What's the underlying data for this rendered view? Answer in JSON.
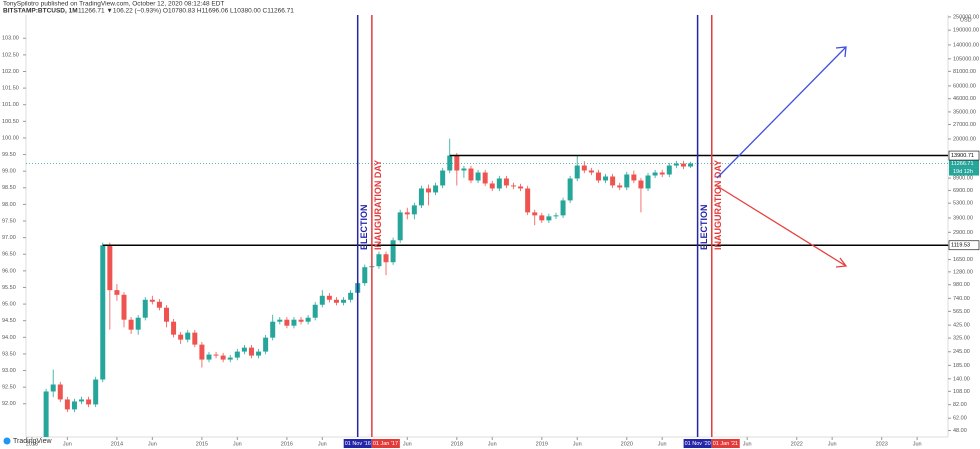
{
  "header": {
    "publisher": "TonySpilotro published on TradingView.com, October 12, 2020 08:12:48 EDT",
    "symbol": "BITSTAMP:BTCUSD, 1M",
    "quote": "11266.71 ▼106.22 (−0.93%) O10780.83 H11696.06 L10380.00 C11266.71"
  },
  "footer": {
    "brand": "TradingView"
  },
  "chart_data": {
    "type": "candlestick",
    "up_color": "#26a69a",
    "down_color": "#ef5350",
    "x": [
      "2013-03",
      "2013-04",
      "2013-05",
      "2013-06",
      "2013-07",
      "2013-08",
      "2013-09",
      "2013-10",
      "2013-11",
      "2013-12",
      "2014-01",
      "2014-02",
      "2014-03",
      "2014-04",
      "2014-05",
      "2014-06",
      "2014-07",
      "2014-08",
      "2014-09",
      "2014-10",
      "2014-11",
      "2014-12",
      "2015-01",
      "2015-02",
      "2015-03",
      "2015-04",
      "2015-05",
      "2015-06",
      "2015-07",
      "2015-08",
      "2015-09",
      "2015-10",
      "2015-11",
      "2015-12",
      "2016-01",
      "2016-02",
      "2016-03",
      "2016-04",
      "2016-05",
      "2016-06",
      "2016-07",
      "2016-08",
      "2016-09",
      "2016-10",
      "2016-11",
      "2016-12",
      "2017-01",
      "2017-02",
      "2017-03",
      "2017-04",
      "2017-05",
      "2017-06",
      "2017-07",
      "2017-08",
      "2017-09",
      "2017-10",
      "2017-11",
      "2017-12",
      "2018-01",
      "2018-02",
      "2018-03",
      "2018-04",
      "2018-05",
      "2018-06",
      "2018-07",
      "2018-08",
      "2018-09",
      "2018-10",
      "2018-11",
      "2018-12",
      "2019-01",
      "2019-02",
      "2019-03",
      "2019-04",
      "2019-05",
      "2019-06",
      "2019-07",
      "2019-08",
      "2019-09",
      "2019-10",
      "2019-11",
      "2019-12",
      "2020-01",
      "2020-02",
      "2020-03",
      "2020-04",
      "2020-05",
      "2020-06",
      "2020-07",
      "2020-08",
      "2020-09",
      "2020-10"
    ],
    "ohlc": [
      [
        90.78,
        92.45,
        90.7,
        92.37
      ],
      [
        92.37,
        93.03,
        92.2,
        92.58
      ],
      [
        92.58,
        92.66,
        92.05,
        92.13
      ],
      [
        92.13,
        92.21,
        91.75,
        91.83
      ],
      [
        91.83,
        92.15,
        91.75,
        92.07
      ],
      [
        92.07,
        92.21,
        91.99,
        92.13
      ],
      [
        92.13,
        92.21,
        91.9,
        91.98
      ],
      [
        91.98,
        92.81,
        91.9,
        92.73
      ],
      [
        92.73,
        96.85,
        92.65,
        96.77
      ],
      [
        96.77,
        96.85,
        94.23,
        95.42
      ],
      [
        95.42,
        95.6,
        95.1,
        95.28
      ],
      [
        95.28,
        95.36,
        94.3,
        94.53
      ],
      [
        94.53,
        94.61,
        94.1,
        94.23
      ],
      [
        94.23,
        94.67,
        94.08,
        94.59
      ],
      [
        94.59,
        95.21,
        94.51,
        95.13
      ],
      [
        95.13,
        95.25,
        94.99,
        95.07
      ],
      [
        95.07,
        95.15,
        94.81,
        94.89
      ],
      [
        94.89,
        94.97,
        94.3,
        94.47
      ],
      [
        94.47,
        94.55,
        94.0,
        94.08
      ],
      [
        94.08,
        94.16,
        93.8,
        93.93
      ],
      [
        93.93,
        94.22,
        93.85,
        94.14
      ],
      [
        94.14,
        94.22,
        93.7,
        93.78
      ],
      [
        93.78,
        93.86,
        93.09,
        93.33
      ],
      [
        93.33,
        93.56,
        93.25,
        93.48
      ],
      [
        93.48,
        93.56,
        93.37,
        93.45
      ],
      [
        93.45,
        93.53,
        93.25,
        93.33
      ],
      [
        93.33,
        93.47,
        93.25,
        93.39
      ],
      [
        93.39,
        93.65,
        93.31,
        93.57
      ],
      [
        93.57,
        93.77,
        93.49,
        93.69
      ],
      [
        93.69,
        93.77,
        93.37,
        93.45
      ],
      [
        93.45,
        93.65,
        93.37,
        93.57
      ],
      [
        93.57,
        94.07,
        93.49,
        93.99
      ],
      [
        93.99,
        94.68,
        93.91,
        94.47
      ],
      [
        94.47,
        94.61,
        94.39,
        94.53
      ],
      [
        94.53,
        94.61,
        94.27,
        94.35
      ],
      [
        94.35,
        94.61,
        94.27,
        94.53
      ],
      [
        94.53,
        94.61,
        94.39,
        94.47
      ],
      [
        94.47,
        94.67,
        94.39,
        94.59
      ],
      [
        94.59,
        95.06,
        94.51,
        94.98
      ],
      [
        94.98,
        95.42,
        94.9,
        95.25
      ],
      [
        95.25,
        95.33,
        95.05,
        95.13
      ],
      [
        95.13,
        95.21,
        94.96,
        95.04
      ],
      [
        95.04,
        95.21,
        94.96,
        95.13
      ],
      [
        95.13,
        95.42,
        95.05,
        95.34
      ],
      [
        95.34,
        95.71,
        95.26,
        95.63
      ],
      [
        95.63,
        96.19,
        95.55,
        96.11
      ],
      [
        96.11,
        96.3,
        95.63,
        96.14
      ],
      [
        96.14,
        96.58,
        96.06,
        96.5
      ],
      [
        96.5,
        96.58,
        95.87,
        96.26
      ],
      [
        96.26,
        97.0,
        96.18,
        96.92
      ],
      [
        96.92,
        97.84,
        96.84,
        97.76
      ],
      [
        97.76,
        97.9,
        97.55,
        97.7
      ],
      [
        97.7,
        98.05,
        97.55,
        97.97
      ],
      [
        97.97,
        98.56,
        97.89,
        98.48
      ],
      [
        98.48,
        98.6,
        97.97,
        98.36
      ],
      [
        98.36,
        98.65,
        98.28,
        98.57
      ],
      [
        98.57,
        99.1,
        98.49,
        99.02
      ],
      [
        99.02,
        99.98,
        98.94,
        99.47
      ],
      [
        99.47,
        99.55,
        98.57,
        99.02
      ],
      [
        99.02,
        99.16,
        98.8,
        99.08
      ],
      [
        99.08,
        99.16,
        98.64,
        98.72
      ],
      [
        98.72,
        99.04,
        98.64,
        98.96
      ],
      [
        98.96,
        99.04,
        98.55,
        98.63
      ],
      [
        98.63,
        98.71,
        98.4,
        98.48
      ],
      [
        98.48,
        98.86,
        98.4,
        98.78
      ],
      [
        98.78,
        98.86,
        98.49,
        98.57
      ],
      [
        98.57,
        98.65,
        98.46,
        98.54
      ],
      [
        98.54,
        98.62,
        98.4,
        98.48
      ],
      [
        98.48,
        98.56,
        97.68,
        97.76
      ],
      [
        97.76,
        97.84,
        97.37,
        97.67
      ],
      [
        97.67,
        97.75,
        97.44,
        97.52
      ],
      [
        97.52,
        97.72,
        97.44,
        97.64
      ],
      [
        97.64,
        97.75,
        97.56,
        97.67
      ],
      [
        97.67,
        98.2,
        97.59,
        98.12
      ],
      [
        98.12,
        98.86,
        98.04,
        98.78
      ],
      [
        98.78,
        99.47,
        98.7,
        99.17
      ],
      [
        99.17,
        99.3,
        98.94,
        99.02
      ],
      [
        99.02,
        99.1,
        98.88,
        98.96
      ],
      [
        98.96,
        99.04,
        98.64,
        98.72
      ],
      [
        98.72,
        98.92,
        98.64,
        98.84
      ],
      [
        98.84,
        98.92,
        98.49,
        98.57
      ],
      [
        98.57,
        98.65,
        98.43,
        98.51
      ],
      [
        98.51,
        98.98,
        98.43,
        98.9
      ],
      [
        98.9,
        99.02,
        98.64,
        98.72
      ],
      [
        98.72,
        98.8,
        97.76,
        98.48
      ],
      [
        98.48,
        98.95,
        98.4,
        98.87
      ],
      [
        98.87,
        99.04,
        98.79,
        98.96
      ],
      [
        98.96,
        99.04,
        98.82,
        98.9
      ],
      [
        98.9,
        99.25,
        98.82,
        99.17
      ],
      [
        99.17,
        99.31,
        99.09,
        99.23
      ],
      [
        99.23,
        99.31,
        99.06,
        99.14
      ],
      [
        99.14,
        99.28,
        99.1,
        99.23
      ]
    ],
    "ylim": [
      91.0,
      103.7
    ],
    "yticks": [
      {
        "value": 92,
        "label": "92.00"
      },
      {
        "value": 92.5,
        "label": "92.50"
      },
      {
        "value": 93,
        "label": "93.00"
      },
      {
        "value": 93.5,
        "label": "93.50"
      },
      {
        "value": 94,
        "label": "94.00"
      },
      {
        "value": 94.5,
        "label": "94.50"
      },
      {
        "value": 95,
        "label": "95.00"
      },
      {
        "value": 95.5,
        "label": "95.50"
      },
      {
        "value": 96,
        "label": "96.00"
      },
      {
        "value": 96.5,
        "label": "96.50"
      },
      {
        "value": 97,
        "label": "97.00"
      },
      {
        "value": 97.5,
        "label": "97.50"
      },
      {
        "value": 98,
        "label": "98.00"
      },
      {
        "value": 98.5,
        "label": "98.50"
      },
      {
        "value": 99,
        "label": "99.00"
      },
      {
        "value": 99.5,
        "label": "99.50"
      },
      {
        "value": 100,
        "label": "100.00"
      },
      {
        "value": 100.5,
        "label": "100.50"
      },
      {
        "value": 101,
        "label": "101.00"
      },
      {
        "value": 101.5,
        "label": "101.50"
      },
      {
        "value": 102,
        "label": "102.00"
      },
      {
        "value": 102.5,
        "label": "102.50"
      },
      {
        "value": 103,
        "label": "103.00"
      }
    ],
    "y2_unit": "USD",
    "y2_log": true,
    "y2lim": [
      42,
      260000
    ],
    "y2ticks": [
      {
        "value": 250000,
        "label": "250000.00"
      },
      {
        "value": 190000,
        "label": "190000.00"
      },
      {
        "value": 140000,
        "label": "140000.00"
      },
      {
        "value": 105000,
        "label": "105000.00"
      },
      {
        "value": 81000,
        "label": "81000.00"
      },
      {
        "value": 60000,
        "label": "60000.00"
      },
      {
        "value": 46000,
        "label": "46000.00"
      },
      {
        "value": 35000,
        "label": "35000.00"
      },
      {
        "value": 27000,
        "label": "27000.00"
      },
      {
        "value": 20000,
        "label": "20000.00"
      },
      {
        "value": 8900,
        "label": "8900.00"
      },
      {
        "value": 6900,
        "label": "6900.00"
      },
      {
        "value": 5300,
        "label": "5300.00"
      },
      {
        "value": 3900,
        "label": "3900.00"
      },
      {
        "value": 2900,
        "label": "2900.00"
      },
      {
        "value": 2200,
        "label": "2200.00"
      },
      {
        "value": 1650,
        "label": "1650.00"
      },
      {
        "value": 1280,
        "label": "1280.00"
      },
      {
        "value": 980,
        "label": "980.00"
      },
      {
        "value": 740,
        "label": "740.00"
      },
      {
        "value": 565,
        "label": "565.00"
      },
      {
        "value": 425,
        "label": "425.00"
      },
      {
        "value": 325,
        "label": "325.00"
      },
      {
        "value": 245,
        "label": "245.00"
      },
      {
        "value": 185,
        "label": "185.00"
      },
      {
        "value": 140,
        "label": "140.00"
      },
      {
        "value": 108,
        "label": "108.00"
      },
      {
        "value": 82,
        "label": "82.00"
      },
      {
        "value": 62,
        "label": "62.00"
      },
      {
        "value": 48,
        "label": "48.00"
      }
    ],
    "xlim": [
      2012.93,
      2023.78
    ],
    "xticks": [
      2013,
      {
        "value": 2013.4167,
        "label": "Jun"
      },
      2014,
      {
        "value": 2014.4167,
        "label": "Jun"
      },
      2015,
      {
        "value": 2015.4167,
        "label": "Jun"
      },
      2016,
      {
        "value": 2016.4167,
        "label": "Jun"
      },
      {
        "value": 2017.4167,
        "label": "Jun"
      },
      2018,
      {
        "value": 2018.4167,
        "label": "Jun"
      },
      2019,
      {
        "value": 2019.4167,
        "label": "Jun"
      },
      2020,
      {
        "value": 2020.4167,
        "label": "Jun"
      },
      {
        "value": 2021.4167,
        "label": "Jun"
      },
      2022,
      {
        "value": 2022.4167,
        "label": "Jun"
      },
      2023,
      {
        "value": 2023.4167,
        "label": "Jun"
      }
    ],
    "levels": [
      {
        "value": 96.77,
        "from": "2013-11",
        "label": "1119.53"
      },
      {
        "value": 99.47,
        "from": "2017-12",
        "label": "13900.71"
      }
    ],
    "price_line": {
      "value": 99.23,
      "label": "11266.71",
      "countdown": "19d 12h"
    },
    "events": [
      {
        "x": "2016-11",
        "color": "#2525a8",
        "text": "ELECTION",
        "date_label": "01 Nov '16"
      },
      {
        "x": "2017-01",
        "color": "#e23b3b",
        "text": "INAUGURATION DAY",
        "date_label": "01 Jan '17"
      },
      {
        "x": "2020-11",
        "color": "#2525a8",
        "text": "ELECTION",
        "date_label": "01 Nov '20"
      },
      {
        "x": "2021-01",
        "color": "#e23b3b",
        "text": "INAUGURATION DAY",
        "date_label": "01 Jan '21"
      }
    ]
  }
}
